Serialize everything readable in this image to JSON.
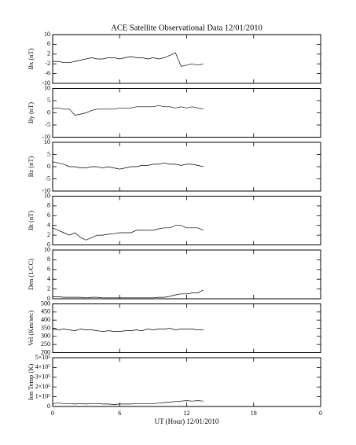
{
  "chart_data": [
    {
      "type": "line",
      "title": "ACE Satellite Observational Data   12/01/2010",
      "ylabel": "Bx (nT)",
      "xlim": [
        0,
        24
      ],
      "xticks": [
        0,
        6,
        12,
        18,
        {
          "value": 24,
          "label": "0"
        }
      ],
      "ylim": [
        -10,
        10
      ],
      "yticks": [
        -10,
        -6,
        -2,
        2,
        6,
        10
      ],
      "x": [
        0,
        0.5,
        1,
        1.5,
        2,
        2.5,
        3,
        3.5,
        4,
        4.5,
        5,
        5.5,
        6,
        6.5,
        7,
        7.5,
        8,
        8.5,
        9,
        9.5,
        10,
        10.5,
        11,
        11.5,
        12,
        12.5,
        13,
        13.5
      ],
      "series": [
        {
          "color": "#000000",
          "values": [
            -1,
            -1,
            -1.5,
            -1.5,
            -1,
            -0.5,
            0,
            0.5,
            0,
            0,
            0.5,
            0.5,
            0,
            0.5,
            1,
            0.5,
            0.5,
            0,
            0.5,
            0,
            0.5,
            1.5,
            2.5,
            -3,
            -2.5,
            -2,
            -2.5,
            -2
          ]
        }
      ]
    },
    {
      "type": "line",
      "ylabel": "By (nT)",
      "xlim": [
        0,
        24
      ],
      "xticks": [
        0,
        6,
        12,
        18,
        {
          "value": 24,
          "label": "0"
        }
      ],
      "ylim": [
        -10,
        10
      ],
      "yticks": [
        -10,
        -5,
        0,
        5,
        10
      ],
      "x": [
        0,
        0.5,
        1,
        1.5,
        2,
        2.5,
        3,
        3.5,
        4,
        4.5,
        5,
        5.5,
        6,
        6.5,
        7,
        7.5,
        8,
        8.5,
        9,
        9.5,
        10,
        10.5,
        11,
        11.5,
        12,
        12.5,
        13,
        13.5
      ],
      "series": [
        {
          "color": "#000000",
          "values": [
            2,
            2,
            1.5,
            1.5,
            -1,
            -0.5,
            0,
            1,
            1.5,
            1.5,
            1.5,
            1.5,
            2,
            2,
            2,
            2.5,
            2.5,
            2.5,
            2.5,
            3,
            2.5,
            2.5,
            2,
            2.5,
            2,
            2.5,
            2,
            1.5
          ]
        }
      ]
    },
    {
      "type": "line",
      "ylabel": "Bz (nT)",
      "xlim": [
        0,
        24
      ],
      "xticks": [
        0,
        6,
        12,
        18,
        {
          "value": 24,
          "label": "0"
        }
      ],
      "ylim": [
        -10,
        10
      ],
      "yticks": [
        -10,
        -5,
        0,
        5,
        10
      ],
      "x": [
        0,
        0.5,
        1,
        1.5,
        2,
        2.5,
        3,
        3.5,
        4,
        4.5,
        5,
        5.5,
        6,
        6.5,
        7,
        7.5,
        8,
        8.5,
        9,
        9.5,
        10,
        10.5,
        11,
        11.5,
        12,
        12.5,
        13,
        13.5
      ],
      "series": [
        {
          "color": "#000000",
          "values": [
            2,
            1.5,
            1,
            0,
            0,
            -0.5,
            -0.5,
            0,
            0,
            -0.5,
            0,
            -0.5,
            -1,
            -0.5,
            0,
            0,
            0.5,
            0.5,
            1,
            1,
            1.5,
            1,
            1,
            0.5,
            1,
            1,
            0.5,
            0
          ]
        }
      ]
    },
    {
      "type": "line",
      "ylabel": "Bt (nT)",
      "xlim": [
        0,
        24
      ],
      "xticks": [
        0,
        6,
        12,
        18,
        {
          "value": 24,
          "label": "0"
        }
      ],
      "ylim": [
        0,
        10
      ],
      "yticks": [
        0,
        2,
        4,
        6,
        8,
        10
      ],
      "x": [
        0,
        0.5,
        1,
        1.5,
        2,
        2.5,
        3,
        3.5,
        4,
        4.5,
        5,
        5.5,
        6,
        6.5,
        7,
        7.5,
        8,
        8.5,
        9,
        9.5,
        10,
        10.5,
        11,
        11.5,
        12,
        12.5,
        13,
        13.5
      ],
      "series": [
        {
          "color": "#000000",
          "values": [
            3.5,
            3,
            2.5,
            2,
            2.5,
            1.5,
            1,
            1.5,
            2,
            2,
            2.2,
            2.3,
            2.5,
            2.5,
            2.5,
            3,
            3,
            3,
            3,
            3.3,
            3.5,
            3.5,
            4,
            4,
            3.5,
            3.5,
            3.5,
            3
          ]
        }
      ]
    },
    {
      "type": "line",
      "ylabel": "Den (1/CC)",
      "xlim": [
        0,
        24
      ],
      "xticks": [
        0,
        6,
        12,
        18,
        {
          "value": 24,
          "label": "0"
        }
      ],
      "ylim": [
        0,
        10
      ],
      "yticks": [
        0,
        2,
        4,
        6,
        8,
        10
      ],
      "x": [
        0,
        0.5,
        1,
        1.5,
        2,
        2.5,
        3,
        3.5,
        4,
        4.5,
        5,
        5.5,
        6,
        6.5,
        7,
        7.5,
        8,
        8.5,
        9,
        9.5,
        10,
        10.5,
        11,
        11.5,
        12,
        12.5,
        13,
        13.5
      ],
      "series": [
        {
          "color": "#000000",
          "values": [
            0.4,
            0.4,
            0.3,
            0.3,
            0.3,
            0.3,
            0.2,
            0.3,
            0.3,
            0.2,
            0.2,
            0.2,
            0.2,
            0.2,
            0.2,
            0.2,
            0.2,
            0.2,
            0.2,
            0.3,
            0.3,
            0.5,
            0.8,
            1,
            1,
            1.2,
            1.2,
            1.8
          ]
        }
      ]
    },
    {
      "type": "line",
      "ylabel": "Vel (Km/sec)",
      "xlim": [
        0,
        24
      ],
      "xticks": [
        0,
        6,
        12,
        18,
        {
          "value": 24,
          "label": "0"
        }
      ],
      "ylim": [
        200,
        500
      ],
      "yticks": [
        200,
        250,
        300,
        350,
        400,
        450,
        500
      ],
      "x": [
        0,
        0.5,
        1,
        1.5,
        2,
        2.5,
        3,
        3.5,
        4,
        4.5,
        5,
        5.5,
        6,
        6.5,
        7,
        7.5,
        8,
        8.5,
        9,
        9.5,
        10,
        10.5,
        11,
        11.5,
        12,
        12.5,
        13,
        13.5
      ],
      "series": [
        {
          "color": "#000000",
          "values": [
            345,
            340,
            345,
            340,
            335,
            345,
            340,
            340,
            335,
            330,
            335,
            330,
            330,
            335,
            335,
            340,
            335,
            345,
            340,
            345,
            345,
            350,
            340,
            345,
            345,
            345,
            340,
            340
          ]
        }
      ]
    },
    {
      "type": "line",
      "ylabel": "Ion Temp (K)",
      "xlabel": "UT (Hour)   12/01/2010",
      "xlim": [
        0,
        24
      ],
      "xticks": [
        0,
        6,
        12,
        18,
        {
          "value": 24,
          "label": "0"
        }
      ],
      "ylim": [
        0,
        500000
      ],
      "yticks": [
        0,
        {
          "value": 100000,
          "label": "1×10⁵"
        },
        {
          "value": 200000,
          "label": "2×10⁵"
        },
        {
          "value": 300000,
          "label": "3×10⁵"
        },
        {
          "value": 400000,
          "label": "4×10⁵"
        },
        {
          "value": 500000,
          "label": "5×10⁵"
        }
      ],
      "x": [
        0,
        0.5,
        1,
        1.5,
        2,
        2.5,
        3,
        3.5,
        4,
        4.5,
        5,
        5.5,
        6,
        6.5,
        7,
        7.5,
        8,
        8.5,
        9,
        9.5,
        10,
        10.5,
        11,
        11.5,
        12,
        12.5,
        13,
        13.5
      ],
      "series": [
        {
          "color": "#000000",
          "values": [
            30000,
            35000,
            30000,
            30000,
            25000,
            30000,
            25000,
            30000,
            30000,
            25000,
            25000,
            20000,
            25000,
            25000,
            25000,
            30000,
            30000,
            30000,
            30000,
            35000,
            40000,
            45000,
            50000,
            55000,
            60000,
            55000,
            60000,
            55000
          ]
        }
      ]
    }
  ]
}
